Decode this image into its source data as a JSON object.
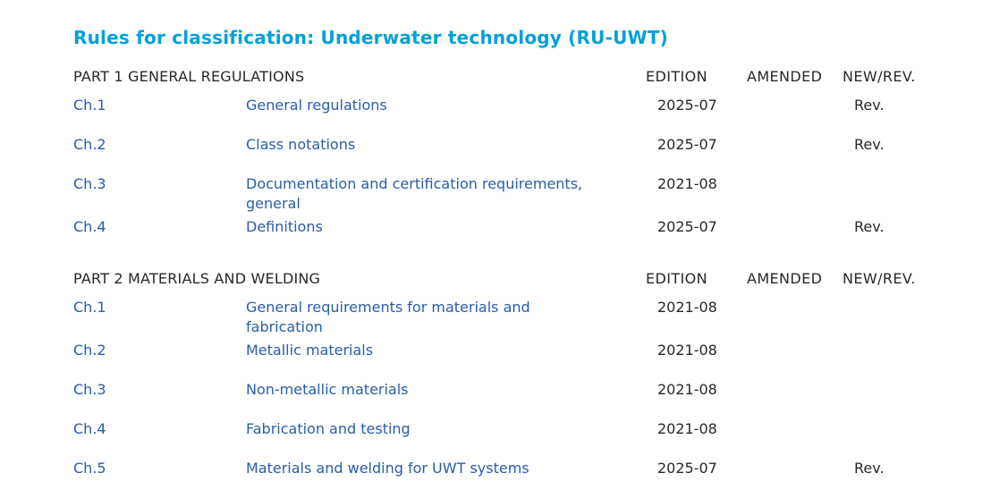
{
  "page": {
    "title": "Rules for classification: Underwater technology (RU-UWT)"
  },
  "columns": {
    "edition": "EDITION",
    "amended": "AMENDED",
    "newrev": "NEW/REV."
  },
  "sections": [
    {
      "part_label": "PART 1 GENERAL REGULATIONS",
      "rows": [
        {
          "chapter": "Ch.1",
          "title": "General regulations",
          "edition": "2025-07",
          "amended": "",
          "newrev": "Rev."
        },
        {
          "chapter": "Ch.2",
          "title": "Class notations",
          "edition": "2025-07",
          "amended": "",
          "newrev": "Rev."
        },
        {
          "chapter": "Ch.3",
          "title": "Documentation and certification requirements, general",
          "edition": "2021-08",
          "amended": "",
          "newrev": ""
        },
        {
          "chapter": "Ch.4",
          "title": "Definitions",
          "edition": "2025-07",
          "amended": "",
          "newrev": "Rev."
        }
      ]
    },
    {
      "part_label": "PART 2 MATERIALS AND WELDING",
      "rows": [
        {
          "chapter": "Ch.1",
          "title": "General requirements for materials and fabrication",
          "edition": "2021-08",
          "amended": "",
          "newrev": ""
        },
        {
          "chapter": "Ch.2",
          "title": "Metallic materials",
          "edition": "2021-08",
          "amended": "",
          "newrev": ""
        },
        {
          "chapter": "Ch.3",
          "title": "Non-metallic materials",
          "edition": "2021-08",
          "amended": "",
          "newrev": ""
        },
        {
          "chapter": "Ch.4",
          "title": "Fabrication and testing",
          "edition": "2021-08",
          "amended": "",
          "newrev": ""
        },
        {
          "chapter": "Ch.5",
          "title": "Materials and welding for UWT systems",
          "edition": "2025-07",
          "amended": "",
          "newrev": "Rev."
        }
      ]
    }
  ],
  "colors": {
    "title_accent": "#00a0dc",
    "link": "#2a5caa",
    "text": "#282828"
  }
}
